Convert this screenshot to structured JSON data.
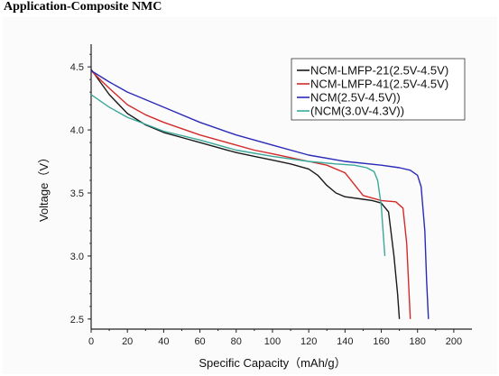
{
  "page": {
    "title": "Application-Composite NMC"
  },
  "chart_data": {
    "type": "line",
    "title": "",
    "xlabel": "Specific Capacity（mAh/g）",
    "ylabel": "Voltage（V）",
    "xlim": [
      0,
      210
    ],
    "ylim": [
      2.42,
      4.68
    ],
    "x_ticks": [
      "0",
      "20",
      "40",
      "60",
      "80",
      "100",
      "120",
      "140",
      "160",
      "180",
      "200"
    ],
    "y_ticks": [
      "2.5",
      "3.0",
      "3.5",
      "4.0",
      "4.5"
    ],
    "grid": false,
    "legend_position": "top-right",
    "series": [
      {
        "name": "NCM-LMFP-21(2.5V-4.5V)",
        "color": "#1a1a1a",
        "points": [
          [
            0,
            4.48
          ],
          [
            5,
            4.38
          ],
          [
            10,
            4.28
          ],
          [
            20,
            4.13
          ],
          [
            30,
            4.04
          ],
          [
            40,
            3.98
          ],
          [
            50,
            3.94
          ],
          [
            60,
            3.9
          ],
          [
            70,
            3.86
          ],
          [
            80,
            3.82
          ],
          [
            90,
            3.79
          ],
          [
            100,
            3.76
          ],
          [
            110,
            3.73
          ],
          [
            120,
            3.69
          ],
          [
            125,
            3.64
          ],
          [
            130,
            3.56
          ],
          [
            135,
            3.5
          ],
          [
            140,
            3.47
          ],
          [
            150,
            3.45
          ],
          [
            155,
            3.44
          ],
          [
            160,
            3.42
          ],
          [
            164,
            3.35
          ],
          [
            167,
            3.0
          ],
          [
            169,
            2.7
          ],
          [
            170,
            2.5
          ]
        ]
      },
      {
        "name": "NCM-LMFP-41(2.5V-4.5V)",
        "color": "#d42a2a",
        "points": [
          [
            0,
            4.47
          ],
          [
            5,
            4.4
          ],
          [
            10,
            4.33
          ],
          [
            20,
            4.2
          ],
          [
            30,
            4.12
          ],
          [
            40,
            4.06
          ],
          [
            50,
            4.01
          ],
          [
            60,
            3.96
          ],
          [
            70,
            3.92
          ],
          [
            80,
            3.88
          ],
          [
            90,
            3.84
          ],
          [
            100,
            3.81
          ],
          [
            110,
            3.78
          ],
          [
            120,
            3.75
          ],
          [
            130,
            3.72
          ],
          [
            140,
            3.66
          ],
          [
            145,
            3.57
          ],
          [
            150,
            3.48
          ],
          [
            160,
            3.44
          ],
          [
            168,
            3.43
          ],
          [
            172,
            3.38
          ],
          [
            174,
            3.1
          ],
          [
            175,
            2.8
          ],
          [
            176,
            2.5
          ]
        ]
      },
      {
        "name": "NCM(2.5V-4.5V))",
        "color": "#2a2ab8",
        "points": [
          [
            0,
            4.47
          ],
          [
            10,
            4.38
          ],
          [
            20,
            4.3
          ],
          [
            40,
            4.18
          ],
          [
            60,
            4.06
          ],
          [
            80,
            3.96
          ],
          [
            100,
            3.88
          ],
          [
            120,
            3.8
          ],
          [
            140,
            3.75
          ],
          [
            160,
            3.72
          ],
          [
            170,
            3.7
          ],
          [
            176,
            3.68
          ],
          [
            180,
            3.64
          ],
          [
            182,
            3.55
          ],
          [
            184,
            3.2
          ],
          [
            185,
            2.8
          ],
          [
            186,
            2.5
          ]
        ]
      },
      {
        "name": "(NCM(3.0V-4.3V))",
        "color": "#3aa89a",
        "points": [
          [
            0,
            4.28
          ],
          [
            10,
            4.18
          ],
          [
            20,
            4.1
          ],
          [
            40,
            3.99
          ],
          [
            60,
            3.92
          ],
          [
            80,
            3.84
          ],
          [
            100,
            3.79
          ],
          [
            120,
            3.75
          ],
          [
            135,
            3.73
          ],
          [
            145,
            3.72
          ],
          [
            152,
            3.7
          ],
          [
            156,
            3.67
          ],
          [
            158,
            3.6
          ],
          [
            160,
            3.4
          ],
          [
            161,
            3.2
          ],
          [
            162,
            3.0
          ]
        ]
      }
    ]
  }
}
